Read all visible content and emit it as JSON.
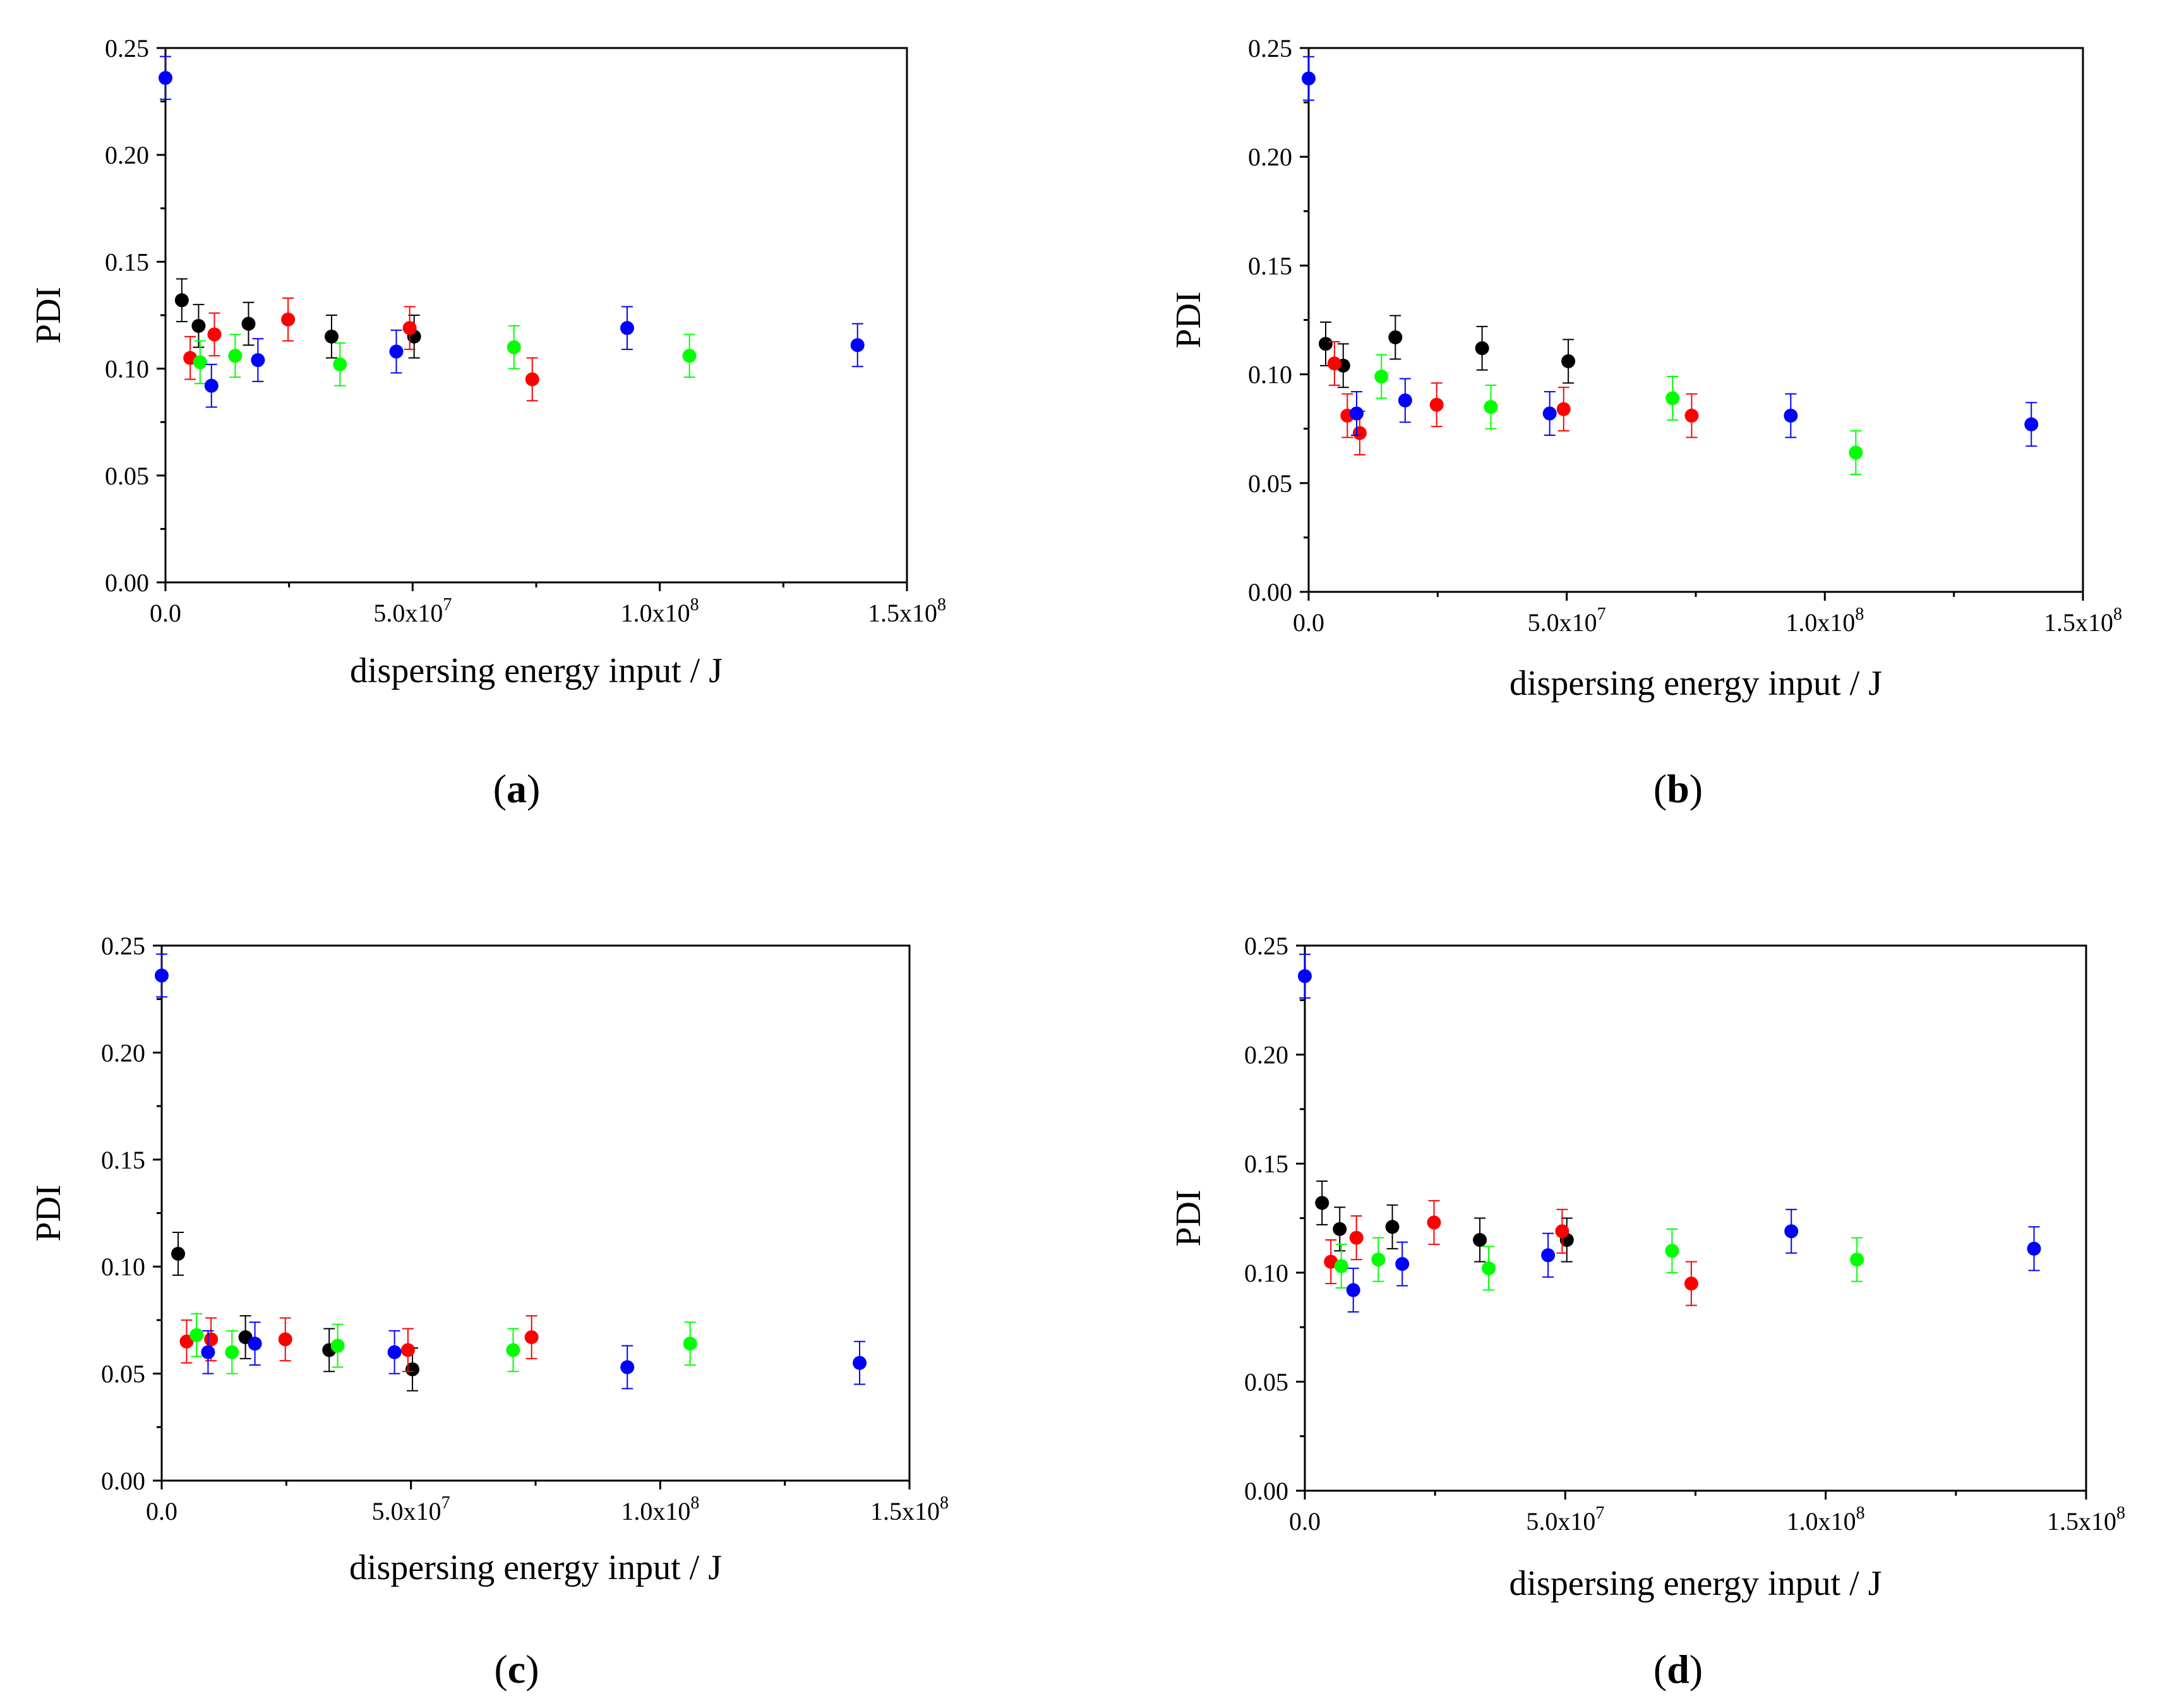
{
  "chart_data": [
    {
      "type": "scatter",
      "panel": "a",
      "caption": "(a)",
      "caption_letter": "a",
      "xlabel": "dispersing energy input / J",
      "ylabel": "PDI",
      "xlim": [
        0,
        150000000
      ],
      "ylim": [
        0,
        0.25
      ],
      "x_ticks": [
        {
          "value": 0,
          "label": "0.0"
        },
        {
          "value": 50000000,
          "label": "5.0x10",
          "exp": "7"
        },
        {
          "value": 100000000,
          "label": "1.0x10",
          "exp": "8"
        },
        {
          "value": 150000000,
          "label": "1.5x10",
          "exp": "8"
        }
      ],
      "y_ticks": [
        {
          "value": 0,
          "label": "0.00"
        },
        {
          "value": 0.05,
          "label": "0.05"
        },
        {
          "value": 0.1,
          "label": "0.10"
        },
        {
          "value": 0.15,
          "label": "0.15"
        },
        {
          "value": 0.2,
          "label": "0.20"
        },
        {
          "value": 0.25,
          "label": "0.25"
        }
      ],
      "series": [
        {
          "name": "black",
          "color": "#000000",
          "points": [
            {
              "x": 3300000,
              "y": 0.132,
              "err": 0.01
            },
            {
              "x": 6700000,
              "y": 0.12,
              "err": 0.01
            },
            {
              "x": 16800000,
              "y": 0.121,
              "err": 0.01
            },
            {
              "x": 33600000,
              "y": 0.115,
              "err": 0.01
            },
            {
              "x": 50300000,
              "y": 0.115,
              "err": 0.01
            }
          ]
        },
        {
          "name": "red",
          "color": "#ff0000",
          "points": [
            {
              "x": 5000000,
              "y": 0.105,
              "err": 0.01
            },
            {
              "x": 9900000,
              "y": 0.116,
              "err": 0.01
            },
            {
              "x": 24800000,
              "y": 0.123,
              "err": 0.01
            },
            {
              "x": 49400000,
              "y": 0.119,
              "err": 0.01
            },
            {
              "x": 74200000,
              "y": 0.095,
              "err": 0.01
            }
          ]
        },
        {
          "name": "green",
          "color": "#00ff00",
          "points": [
            {
              "x": 7000000,
              "y": 0.103,
              "err": 0.01
            },
            {
              "x": 14100000,
              "y": 0.106,
              "err": 0.01
            },
            {
              "x": 35300000,
              "y": 0.102,
              "err": 0.01
            },
            {
              "x": 70500000,
              "y": 0.11,
              "err": 0.01
            },
            {
              "x": 106000000,
              "y": 0.106,
              "err": 0.01
            }
          ]
        },
        {
          "name": "blue",
          "color": "#0000ff",
          "points": [
            {
              "x": 0,
              "y": 0.236,
              "err": 0.01
            },
            {
              "x": 9300000,
              "y": 0.092,
              "err": 0.01
            },
            {
              "x": 18700000,
              "y": 0.104,
              "err": 0.01
            },
            {
              "x": 46700000,
              "y": 0.108,
              "err": 0.01
            },
            {
              "x": 93400000,
              "y": 0.119,
              "err": 0.01
            },
            {
              "x": 140000000,
              "y": 0.111,
              "err": 0.01
            }
          ]
        }
      ]
    },
    {
      "type": "scatter",
      "panel": "b",
      "caption": "(b)",
      "caption_letter": "b",
      "xlabel": "dispersing energy input / J",
      "ylabel": "PDI",
      "xlim": [
        0,
        150000000
      ],
      "ylim": [
        0,
        0.25
      ],
      "x_ticks": [
        {
          "value": 0,
          "label": "0.0"
        },
        {
          "value": 50000000,
          "label": "5.0x10",
          "exp": "7"
        },
        {
          "value": 100000000,
          "label": "1.0x10",
          "exp": "8"
        },
        {
          "value": 150000000,
          "label": "1.5x10",
          "exp": "8"
        }
      ],
      "y_ticks": [
        {
          "value": 0,
          "label": "0.00"
        },
        {
          "value": 0.05,
          "label": "0.05"
        },
        {
          "value": 0.1,
          "label": "0.10"
        },
        {
          "value": 0.15,
          "label": "0.15"
        },
        {
          "value": 0.2,
          "label": "0.20"
        },
        {
          "value": 0.25,
          "label": "0.25"
        }
      ],
      "series": [
        {
          "name": "black",
          "color": "#000000",
          "points": [
            {
              "x": 3300000,
              "y": 0.114,
              "err": 0.01
            },
            {
              "x": 6700000,
              "y": 0.104,
              "err": 0.01
            },
            {
              "x": 16800000,
              "y": 0.117,
              "err": 0.01
            },
            {
              "x": 33600000,
              "y": 0.112,
              "err": 0.01
            },
            {
              "x": 50300000,
              "y": 0.106,
              "err": 0.01
            }
          ]
        },
        {
          "name": "red",
          "color": "#ff0000",
          "points": [
            {
              "x": 5000000,
              "y": 0.105,
              "err": 0.01
            },
            {
              "x": 7500000,
              "y": 0.081,
              "err": 0.01
            },
            {
              "x": 9900000,
              "y": 0.073,
              "err": 0.01
            },
            {
              "x": 24800000,
              "y": 0.086,
              "err": 0.01
            },
            {
              "x": 49400000,
              "y": 0.084,
              "err": 0.01
            },
            {
              "x": 74200000,
              "y": 0.081,
              "err": 0.01
            }
          ]
        },
        {
          "name": "green",
          "color": "#00ff00",
          "points": [
            {
              "x": 14100000,
              "y": 0.099,
              "err": 0.01
            },
            {
              "x": 35300000,
              "y": 0.085,
              "err": 0.01
            },
            {
              "x": 70500000,
              "y": 0.089,
              "err": 0.01
            },
            {
              "x": 106000000,
              "y": 0.064,
              "err": 0.01
            }
          ]
        },
        {
          "name": "blue",
          "color": "#0000ff",
          "points": [
            {
              "x": 0,
              "y": 0.236,
              "err": 0.01
            },
            {
              "x": 9300000,
              "y": 0.082,
              "err": 0.01
            },
            {
              "x": 18700000,
              "y": 0.088,
              "err": 0.01
            },
            {
              "x": 46700000,
              "y": 0.082,
              "err": 0.01
            },
            {
              "x": 93400000,
              "y": 0.081,
              "err": 0.01
            },
            {
              "x": 140000000,
              "y": 0.077,
              "err": 0.01
            }
          ]
        }
      ]
    },
    {
      "type": "scatter",
      "panel": "c",
      "caption": "(c)",
      "caption_letter": "c",
      "xlabel": "dispersing energy input / J",
      "ylabel": "PDI",
      "xlim": [
        0,
        150000000
      ],
      "ylim": [
        0,
        0.25
      ],
      "x_ticks": [
        {
          "value": 0,
          "label": "0.0"
        },
        {
          "value": 50000000,
          "label": "5.0x10",
          "exp": "7"
        },
        {
          "value": 100000000,
          "label": "1.0x10",
          "exp": "8"
        },
        {
          "value": 150000000,
          "label": "1.5x10",
          "exp": "8"
        }
      ],
      "y_ticks": [
        {
          "value": 0,
          "label": "0.00"
        },
        {
          "value": 0.05,
          "label": "0.05"
        },
        {
          "value": 0.1,
          "label": "0.10"
        },
        {
          "value": 0.15,
          "label": "0.15"
        },
        {
          "value": 0.2,
          "label": "0.20"
        },
        {
          "value": 0.25,
          "label": "0.25"
        }
      ],
      "series": [
        {
          "name": "black",
          "color": "#000000",
          "points": [
            {
              "x": 3300000,
              "y": 0.106,
              "err": 0.01
            },
            {
              "x": 16800000,
              "y": 0.067,
              "err": 0.01
            },
            {
              "x": 33600000,
              "y": 0.061,
              "err": 0.01
            },
            {
              "x": 50300000,
              "y": 0.052,
              "err": 0.01
            }
          ]
        },
        {
          "name": "red",
          "color": "#ff0000",
          "points": [
            {
              "x": 5000000,
              "y": 0.065,
              "err": 0.01
            },
            {
              "x": 9900000,
              "y": 0.066,
              "err": 0.01
            },
            {
              "x": 24800000,
              "y": 0.066,
              "err": 0.01
            },
            {
              "x": 49400000,
              "y": 0.061,
              "err": 0.01
            },
            {
              "x": 74200000,
              "y": 0.067,
              "err": 0.01
            }
          ]
        },
        {
          "name": "green",
          "color": "#00ff00",
          "points": [
            {
              "x": 7000000,
              "y": 0.068,
              "err": 0.01
            },
            {
              "x": 14100000,
              "y": 0.06,
              "err": 0.01
            },
            {
              "x": 35300000,
              "y": 0.063,
              "err": 0.01
            },
            {
              "x": 70500000,
              "y": 0.061,
              "err": 0.01
            },
            {
              "x": 106000000,
              "y": 0.064,
              "err": 0.01
            }
          ]
        },
        {
          "name": "blue",
          "color": "#0000ff",
          "points": [
            {
              "x": 0,
              "y": 0.236,
              "err": 0.01
            },
            {
              "x": 9300000,
              "y": 0.06,
              "err": 0.01
            },
            {
              "x": 18700000,
              "y": 0.064,
              "err": 0.01
            },
            {
              "x": 46700000,
              "y": 0.06,
              "err": 0.01
            },
            {
              "x": 93400000,
              "y": 0.053,
              "err": 0.01
            },
            {
              "x": 140000000,
              "y": 0.055,
              "err": 0.01
            }
          ]
        }
      ]
    },
    {
      "type": "scatter",
      "panel": "d",
      "caption": "(d)",
      "caption_letter": "d",
      "xlabel": "dispersing energy input / J",
      "ylabel": "PDI",
      "xlim": [
        0,
        150000000
      ],
      "ylim": [
        0,
        0.25
      ],
      "x_ticks": [
        {
          "value": 0,
          "label": "0.0"
        },
        {
          "value": 50000000,
          "label": "5.0x10",
          "exp": "7"
        },
        {
          "value": 100000000,
          "label": "1.0x10",
          "exp": "8"
        },
        {
          "value": 150000000,
          "label": "1.5x10",
          "exp": "8"
        }
      ],
      "y_ticks": [
        {
          "value": 0,
          "label": "0.00"
        },
        {
          "value": 0.05,
          "label": "0.05"
        },
        {
          "value": 0.1,
          "label": "0.10"
        },
        {
          "value": 0.15,
          "label": "0.15"
        },
        {
          "value": 0.2,
          "label": "0.20"
        },
        {
          "value": 0.25,
          "label": "0.25"
        }
      ],
      "series": [
        {
          "name": "black",
          "color": "#000000",
          "points": [
            {
              "x": 3300000,
              "y": 0.132,
              "err": 0.01
            },
            {
              "x": 6700000,
              "y": 0.12,
              "err": 0.01
            },
            {
              "x": 16800000,
              "y": 0.121,
              "err": 0.01
            },
            {
              "x": 33600000,
              "y": 0.115,
              "err": 0.01
            },
            {
              "x": 50300000,
              "y": 0.115,
              "err": 0.01
            }
          ]
        },
        {
          "name": "red",
          "color": "#ff0000",
          "points": [
            {
              "x": 5000000,
              "y": 0.105,
              "err": 0.01
            },
            {
              "x": 9900000,
              "y": 0.116,
              "err": 0.01
            },
            {
              "x": 24800000,
              "y": 0.123,
              "err": 0.01
            },
            {
              "x": 49400000,
              "y": 0.119,
              "err": 0.01
            },
            {
              "x": 74200000,
              "y": 0.095,
              "err": 0.01
            }
          ]
        },
        {
          "name": "green",
          "color": "#00ff00",
          "points": [
            {
              "x": 7000000,
              "y": 0.103,
              "err": 0.01
            },
            {
              "x": 14100000,
              "y": 0.106,
              "err": 0.01
            },
            {
              "x": 35300000,
              "y": 0.102,
              "err": 0.01
            },
            {
              "x": 70500000,
              "y": 0.11,
              "err": 0.01
            },
            {
              "x": 106000000,
              "y": 0.106,
              "err": 0.01
            }
          ]
        },
        {
          "name": "blue",
          "color": "#0000ff",
          "points": [
            {
              "x": 0,
              "y": 0.236,
              "err": 0.01
            },
            {
              "x": 9300000,
              "y": 0.092,
              "err": 0.01
            },
            {
              "x": 18700000,
              "y": 0.104,
              "err": 0.01
            },
            {
              "x": 46700000,
              "y": 0.108,
              "err": 0.01
            },
            {
              "x": 93400000,
              "y": 0.119,
              "err": 0.01
            },
            {
              "x": 140000000,
              "y": 0.111,
              "err": 0.01
            }
          ]
        }
      ]
    }
  ]
}
